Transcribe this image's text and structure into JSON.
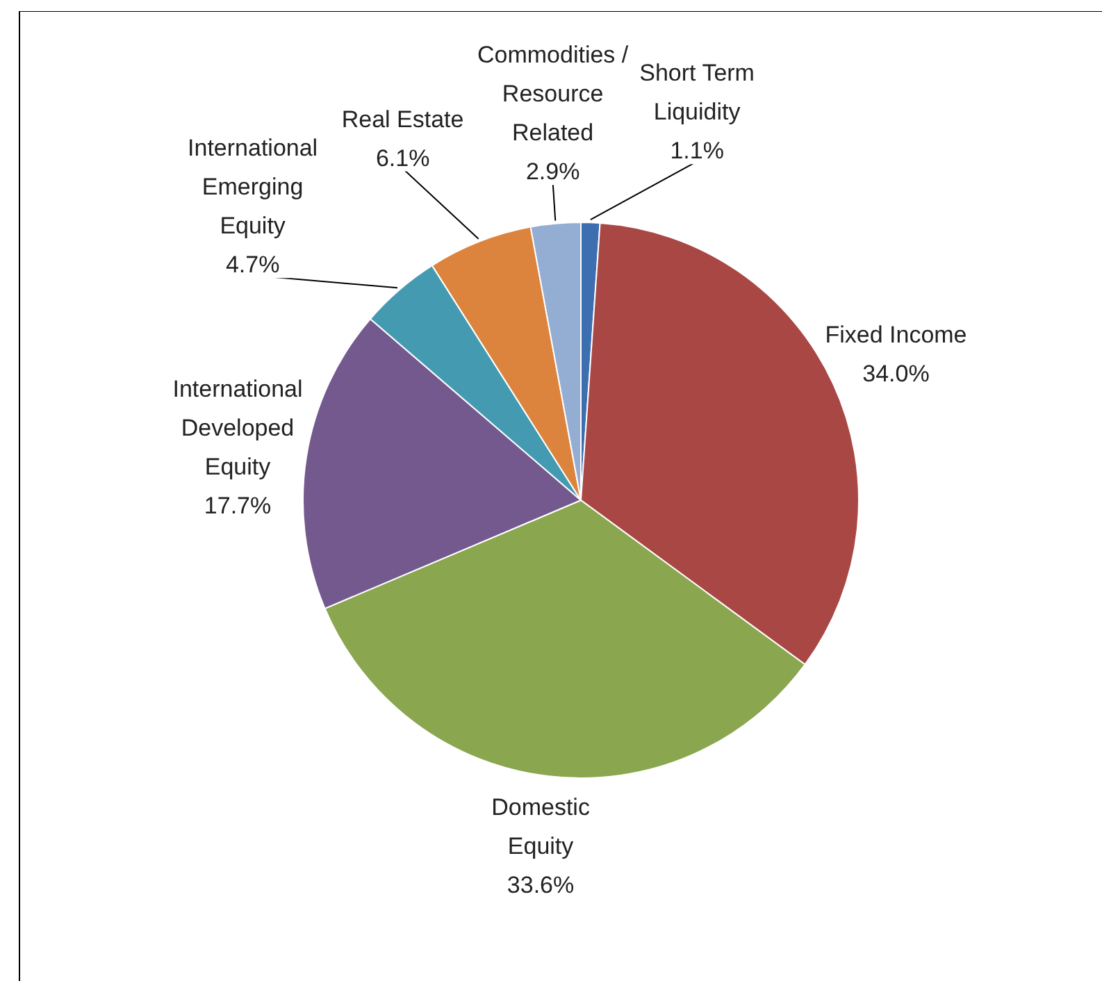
{
  "chart_data": {
    "type": "pie",
    "categories": [
      "Short Term Liquidity",
      "Fixed Income",
      "Domestic Equity",
      "International Developed Equity",
      "International Emerging Equity",
      "Real Estate",
      "Commodities / Resource Related"
    ],
    "values": [
      1.1,
      34.0,
      33.6,
      17.7,
      4.7,
      6.1,
      2.9
    ],
    "value_labels": [
      "1.1%",
      "34.0%",
      "33.6%",
      "17.7%",
      "4.7%",
      "6.1%",
      "2.9%"
    ],
    "colors": [
      "#3d6eb0",
      "#a94745",
      "#8aa64f",
      "#73598e",
      "#449bb1",
      "#dc843d",
      "#93add3"
    ]
  }
}
